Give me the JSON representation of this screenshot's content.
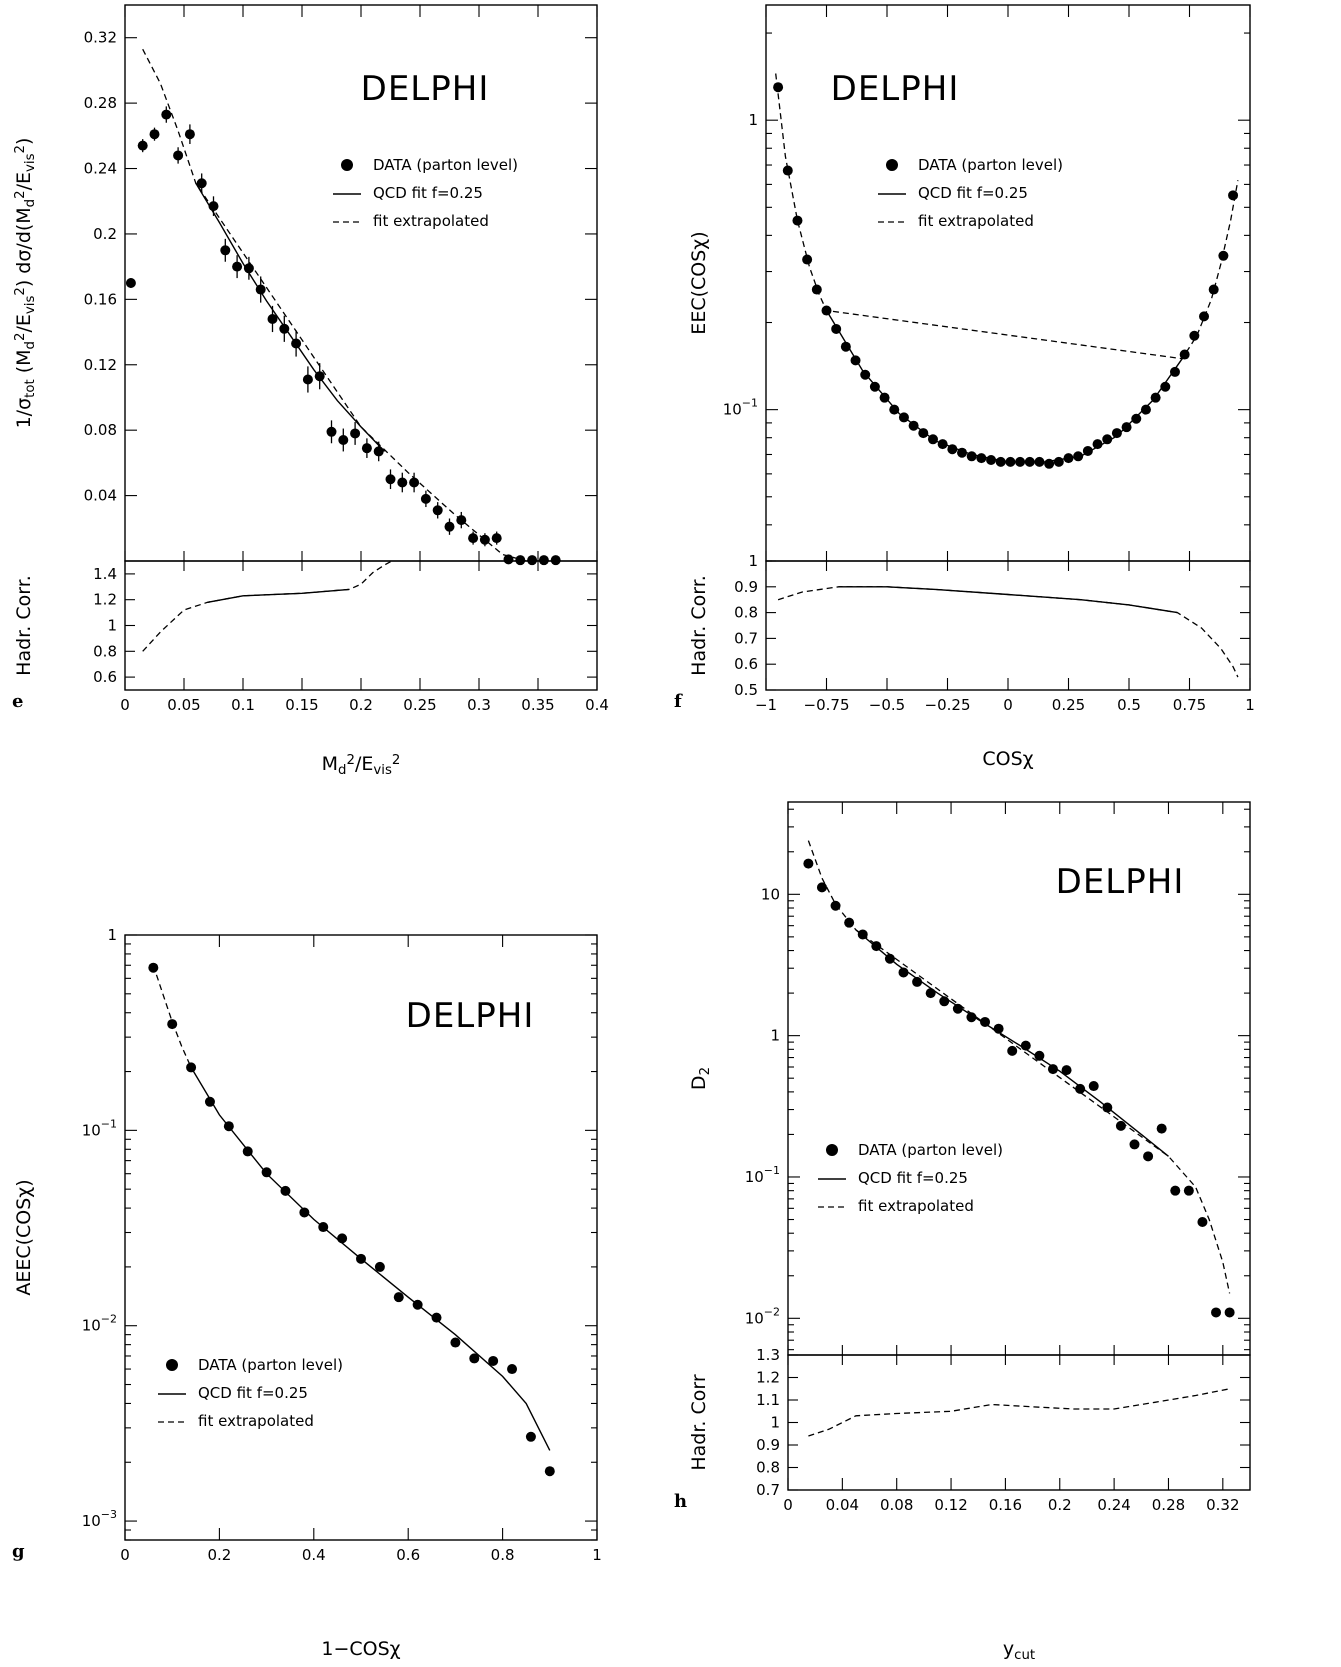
{
  "chart_data": [
    {
      "panel": "e",
      "type": "scatter",
      "title": "DELPHI",
      "xlabel": "M_d^2/E_vis^2",
      "ylabel": "1/σ_tot (M_d^2/E_vis^2) dσ/d(M_d^2/E_vis^2)",
      "x_scale": "linear",
      "y_scale": "linear",
      "xlim": [
        0,
        0.4
      ],
      "ylim": [
        0,
        0.34
      ],
      "x_ticks": [
        "0",
        "0.05",
        "0.1",
        "0.15",
        "0.2",
        "0.25",
        "0.3",
        "0.35",
        "0.4"
      ],
      "y_ticks": [
        "0.04",
        "0.08",
        "0.12",
        "0.16",
        "0.2",
        "0.24",
        "0.28",
        "0.32"
      ],
      "legend": [
        "DATA (parton level)",
        "QCD fit f=0.25",
        "fit extrapolated"
      ],
      "legend_position": "top-right",
      "series": [
        {
          "name": "DATA (parton level)",
          "x": [
            0.005,
            0.015,
            0.025,
            0.035,
            0.045,
            0.055,
            0.065,
            0.075,
            0.085,
            0.095,
            0.105,
            0.115,
            0.125,
            0.135,
            0.145,
            0.155,
            0.165,
            0.175,
            0.185,
            0.195,
            0.205,
            0.215,
            0.225,
            0.235,
            0.245,
            0.255,
            0.265,
            0.275,
            0.285,
            0.295,
            0.305,
            0.315,
            0.325,
            0.335,
            0.345,
            0.355,
            0.365
          ],
          "y": [
            0.17,
            0.254,
            0.261,
            0.273,
            0.248,
            0.261,
            0.231,
            0.217,
            0.19,
            0.18,
            0.179,
            0.166,
            0.148,
            0.142,
            0.133,
            0.111,
            0.113,
            0.079,
            0.074,
            0.078,
            0.069,
            0.067,
            0.05,
            0.048,
            0.048,
            0.038,
            0.031,
            0.021,
            0.025,
            0.014,
            0.013,
            0.014,
            0.001,
            0.0005,
            0.0005,
            0.0005,
            0.0005
          ],
          "err": [
            0.003,
            0.004,
            0.004,
            0.005,
            0.005,
            0.006,
            0.006,
            0.006,
            0.007,
            0.007,
            0.007,
            0.008,
            0.008,
            0.008,
            0.008,
            0.008,
            0.008,
            0.007,
            0.007,
            0.007,
            0.006,
            0.006,
            0.006,
            0.006,
            0.006,
            0.005,
            0.005,
            0.005,
            0.005,
            0.004,
            0.004,
            0.004,
            0.002,
            0.001,
            0.001,
            0.001,
            0.001
          ]
        },
        {
          "name": "QCD fit f=0.25",
          "x": [
            0.06,
            0.08,
            0.1,
            0.12,
            0.14,
            0.16,
            0.18,
            0.2,
            0.22
          ],
          "y": [
            0.231,
            0.207,
            0.182,
            0.159,
            0.138,
            0.117,
            0.098,
            0.082,
            0.067
          ]
        },
        {
          "name": "fit extrapolated",
          "x": [
            0.015,
            0.03,
            0.045,
            0.06,
            0.2,
            0.24,
            0.28,
            0.32,
            0.34
          ],
          "y": [
            0.313,
            0.292,
            0.263,
            0.231,
            0.082,
            0.054,
            0.028,
            0.004,
            0.0
          ]
        }
      ],
      "hadr_corr": {
        "ylabel": "Hadr. Corr.",
        "ylim": [
          0.5,
          1.5
        ],
        "y_ticks": [
          "0.6",
          "0.8",
          "1",
          "1.2",
          "1.4"
        ],
        "x": [
          0.015,
          0.03,
          0.05,
          0.07,
          0.1,
          0.15,
          0.19,
          0.2,
          0.21,
          0.22,
          0.226
        ],
        "y": [
          0.8,
          0.95,
          1.12,
          1.18,
          1.23,
          1.25,
          1.28,
          1.32,
          1.41,
          1.47,
          1.5
        ],
        "solid_range": [
          0.07,
          0.19
        ]
      }
    },
    {
      "panel": "f",
      "type": "scatter",
      "title": "DELPHI",
      "xlabel": "COSχ",
      "ylabel": "EEC(COSχ)",
      "x_scale": "linear",
      "y_scale": "log",
      "xlim": [
        -1,
        1
      ],
      "ylim": [
        0.03,
        2.5
      ],
      "x_ticks": [
        "−1",
        "−0.75",
        "−0.5",
        "−0.25",
        "0",
        "0.25",
        "0.5",
        "0.75",
        "1"
      ],
      "y_ticks": [
        "1",
        "10^-1"
      ],
      "legend": [
        "DATA (parton level)",
        "QCD fit f=0.25",
        "fit extrapolated"
      ],
      "legend_position": "top-right",
      "series": [
        {
          "name": "DATA (parton level)",
          "x": [
            -0.95,
            -0.91,
            -0.87,
            -0.83,
            -0.79,
            -0.75,
            -0.71,
            -0.67,
            -0.63,
            -0.59,
            -0.55,
            -0.51,
            -0.47,
            -0.43,
            -0.39,
            -0.35,
            -0.31,
            -0.27,
            -0.23,
            -0.19,
            -0.15,
            -0.11,
            -0.07,
            -0.03,
            0.01,
            0.05,
            0.09,
            0.13,
            0.17,
            0.21,
            0.25,
            0.29,
            0.33,
            0.37,
            0.41,
            0.45,
            0.49,
            0.53,
            0.57,
            0.61,
            0.65,
            0.69,
            0.73,
            0.77,
            0.81,
            0.85,
            0.89,
            0.93
          ],
          "y": [
            1.3,
            0.67,
            0.45,
            0.33,
            0.26,
            0.22,
            0.19,
            0.165,
            0.148,
            0.132,
            0.12,
            0.11,
            0.1,
            0.094,
            0.088,
            0.083,
            0.079,
            0.076,
            0.073,
            0.071,
            0.069,
            0.068,
            0.067,
            0.066,
            0.066,
            0.066,
            0.066,
            0.066,
            0.065,
            0.066,
            0.068,
            0.069,
            0.072,
            0.076,
            0.079,
            0.083,
            0.087,
            0.093,
            0.1,
            0.11,
            0.12,
            0.135,
            0.155,
            0.18,
            0.21,
            0.26,
            0.34,
            0.55
          ]
        },
        {
          "name": "QCD fit f=0.25",
          "x": [
            -0.75,
            -0.6,
            -0.45,
            -0.3,
            -0.15,
            0,
            0.15,
            0.3,
            0.45,
            0.6,
            0.72
          ],
          "y": [
            0.22,
            0.136,
            0.097,
            0.078,
            0.07,
            0.066,
            0.066,
            0.069,
            0.081,
            0.108,
            0.15
          ]
        },
        {
          "name": "fit extrapolated",
          "x": [
            -0.96,
            -0.92,
            -0.87,
            -0.82,
            -0.78,
            -0.75,
            0.72,
            0.78,
            0.84,
            0.88,
            0.92,
            0.95
          ],
          "y": [
            1.45,
            0.75,
            0.45,
            0.31,
            0.25,
            0.22,
            0.15,
            0.18,
            0.24,
            0.32,
            0.45,
            0.62
          ]
        }
      ],
      "hadr_corr": {
        "ylabel": "Hadr. Corr.",
        "ylim": [
          0.5,
          1.0
        ],
        "y_ticks": [
          "0.5",
          "0.6",
          "0.7",
          "0.8",
          "0.9",
          "1"
        ],
        "x": [
          -0.95,
          -0.85,
          -0.7,
          -0.5,
          -0.3,
          0,
          0.3,
          0.5,
          0.7,
          0.8,
          0.88,
          0.93,
          0.95
        ],
        "y": [
          0.85,
          0.88,
          0.9,
          0.9,
          0.89,
          0.87,
          0.85,
          0.83,
          0.8,
          0.74,
          0.66,
          0.59,
          0.55
        ],
        "solid_range": [
          -0.7,
          0.7
        ]
      }
    },
    {
      "panel": "g",
      "type": "scatter",
      "title": "DELPHI",
      "xlabel": "1−COSχ",
      "ylabel": "AEEC(COSχ)",
      "x_scale": "linear",
      "y_scale": "log",
      "xlim": [
        0,
        1
      ],
      "ylim": [
        0.0008,
        1
      ],
      "x_ticks": [
        "0",
        "0.2",
        "0.4",
        "0.6",
        "0.8",
        "1"
      ],
      "y_ticks": [
        "1",
        "10^-1",
        "10^-2",
        "10^-3"
      ],
      "legend": [
        "DATA (parton level)",
        "QCD fit f=0.25",
        "fit extrapolated"
      ],
      "legend_position": "bottom-left",
      "series": [
        {
          "name": "DATA (parton level)",
          "x": [
            0.06,
            0.1,
            0.14,
            0.18,
            0.22,
            0.26,
            0.3,
            0.34,
            0.38,
            0.42,
            0.46,
            0.5,
            0.54,
            0.58,
            0.62,
            0.66,
            0.7,
            0.74,
            0.78,
            0.82,
            0.86,
            0.9
          ],
          "y": [
            0.68,
            0.35,
            0.21,
            0.14,
            0.105,
            0.078,
            0.061,
            0.049,
            0.038,
            0.032,
            0.028,
            0.022,
            0.02,
            0.014,
            0.0128,
            0.011,
            0.0082,
            0.0068,
            0.0066,
            0.006,
            0.0027,
            0.0018
          ],
          "err": [
            0.01,
            0.01,
            0.005,
            0.003,
            0.002,
            0.002,
            0.001,
            0.001,
            0.001,
            0.0008,
            0.0008,
            0.0007,
            0.0007,
            0.0008,
            0.0008,
            0.0009,
            0.001,
            0.0011,
            0.0011,
            0.0012,
            0.0012,
            0.001
          ]
        },
        {
          "name": "QCD fit f=0.25",
          "x": [
            0.14,
            0.2,
            0.3,
            0.4,
            0.5,
            0.6,
            0.7,
            0.8,
            0.85,
            0.9
          ],
          "y": [
            0.21,
            0.12,
            0.06,
            0.035,
            0.022,
            0.014,
            0.009,
            0.0055,
            0.004,
            0.0023
          ]
        },
        {
          "name": "fit extrapolated",
          "x": [
            0.06,
            0.08,
            0.1,
            0.12,
            0.14
          ],
          "y": [
            0.7,
            0.5,
            0.36,
            0.27,
            0.21
          ]
        }
      ]
    },
    {
      "panel": "h",
      "type": "scatter",
      "title": "DELPHI",
      "xlabel": "y_cut",
      "ylabel": "D_2",
      "x_scale": "linear",
      "y_scale": "log",
      "xlim": [
        0,
        0.34
      ],
      "ylim": [
        0.0055,
        45
      ],
      "x_ticks": [
        "0",
        "0.04",
        "0.08",
        "0.12",
        "0.16",
        "0.2",
        "0.24",
        "0.28",
        "0.32"
      ],
      "y_ticks": [
        "10",
        "1",
        "10^-1",
        "10^-2"
      ],
      "legend": [
        "DATA (parton level)",
        "QCD fit f=0.25",
        "fit extrapolated"
      ],
      "legend_position": "bottom-left",
      "series": [
        {
          "name": "DATA (parton level)",
          "x": [
            0.015,
            0.025,
            0.035,
            0.045,
            0.055,
            0.065,
            0.075,
            0.085,
            0.095,
            0.105,
            0.115,
            0.125,
            0.135,
            0.145,
            0.155,
            0.165,
            0.175,
            0.185,
            0.195,
            0.205,
            0.215,
            0.225,
            0.235,
            0.245,
            0.255,
            0.265,
            0.275,
            0.285,
            0.295,
            0.305,
            0.315,
            0.325
          ],
          "y": [
            16.5,
            11.2,
            8.3,
            6.3,
            5.2,
            4.3,
            3.5,
            2.8,
            2.4,
            2.0,
            1.75,
            1.55,
            1.35,
            1.25,
            1.12,
            0.78,
            0.85,
            0.72,
            0.58,
            0.57,
            0.42,
            0.44,
            0.31,
            0.23,
            0.17,
            0.14,
            0.22,
            0.08,
            0.08,
            0.048,
            0.011,
            0.011
          ]
        },
        {
          "name": "QCD fit f=0.25",
          "x": [
            0.05,
            0.08,
            0.11,
            0.14,
            0.17,
            0.2,
            0.23,
            0.26,
            0.28
          ],
          "y": [
            5.6,
            3.2,
            2.0,
            1.3,
            0.86,
            0.56,
            0.34,
            0.2,
            0.14
          ]
        },
        {
          "name": "fit extrapolated",
          "x": [
            0.015,
            0.025,
            0.035,
            0.05,
            0.28,
            0.3,
            0.31,
            0.32,
            0.325
          ],
          "y": [
            24,
            13,
            8.5,
            5.6,
            0.14,
            0.085,
            0.05,
            0.025,
            0.015
          ]
        }
      ],
      "hadr_corr": {
        "ylabel": "Hadr. Corr",
        "ylim": [
          0.7,
          1.3
        ],
        "y_ticks": [
          "0.7",
          "0.8",
          "0.9",
          "1",
          "1.1",
          "1.2",
          "1.3"
        ],
        "x": [
          0.015,
          0.03,
          0.05,
          0.08,
          0.12,
          0.15,
          0.18,
          0.21,
          0.24,
          0.27,
          0.3,
          0.325
        ],
        "y": [
          0.94,
          0.97,
          1.03,
          1.04,
          1.05,
          1.08,
          1.07,
          1.06,
          1.06,
          1.09,
          1.12,
          1.15
        ],
        "solid_range": [
          -1,
          -1
        ]
      }
    }
  ]
}
